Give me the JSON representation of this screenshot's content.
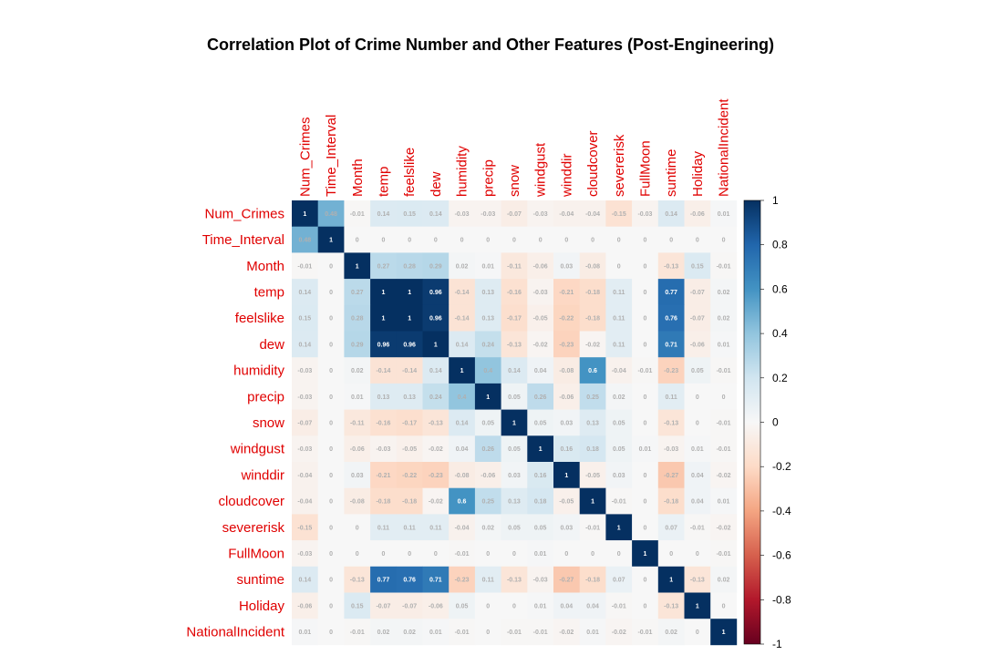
{
  "chart_data": {
    "type": "heatmap",
    "title": "Correlation Plot of Crime Number and Other Features (Post-Engineering)",
    "variables": [
      "Num_Crimes",
      "Time_Interval",
      "Month",
      "temp",
      "feelslike",
      "dew",
      "humidity",
      "precip",
      "snow",
      "windgust",
      "winddir",
      "cloudcover",
      "severerisk",
      "FullMoon",
      "suntime",
      "Holiday",
      "NationalIncident"
    ],
    "cell_labels": [
      [
        "1",
        "0.48",
        "-0.01",
        "0.14",
        "0.15",
        "0.14",
        "-0.03",
        "-0.03",
        "-0.07",
        "-0.03",
        "-0.04",
        "-0.04",
        "-0.15",
        "-0.03",
        "0.14",
        "-0.06",
        "0.01"
      ],
      [
        "0.48",
        "1",
        "0",
        "0",
        "0",
        "0",
        "0",
        "0",
        "0",
        "0",
        "0",
        "0",
        "0",
        "0",
        "0",
        "0",
        "0"
      ],
      [
        "-0.01",
        "0",
        "1",
        "0.27",
        "0.28",
        "0.29",
        "0.02",
        "0.01",
        "-0.11",
        "-0.06",
        "0.03",
        "-0.08",
        "0",
        "0",
        "-0.13",
        "0.15",
        "-0.01"
      ],
      [
        "0.14",
        "0",
        "0.27",
        "1",
        "1",
        "0.96",
        "-0.14",
        "0.13",
        "-0.16",
        "-0.03",
        "-0.21",
        "-0.18",
        "0.11",
        "0",
        "0.77",
        "-0.07",
        "0.02"
      ],
      [
        "0.15",
        "0",
        "0.28",
        "1",
        "1",
        "0.96",
        "-0.14",
        "0.13",
        "-0.17",
        "-0.05",
        "-0.22",
        "-0.18",
        "0.11",
        "0",
        "0.76",
        "-0.07",
        "0.02"
      ],
      [
        "0.14",
        "0",
        "0.29",
        "0.96",
        "0.96",
        "1",
        "0.14",
        "0.24",
        "-0.13",
        "-0.02",
        "-0.23",
        "-0.02",
        "0.11",
        "0",
        "0.71",
        "-0.06",
        "0.01"
      ],
      [
        "-0.03",
        "0",
        "0.02",
        "-0.14",
        "-0.14",
        "0.14",
        "1",
        "0.4",
        "0.14",
        "0.04",
        "-0.08",
        "0.6",
        "-0.04",
        "-0.01",
        "-0.23",
        "0.05",
        "-0.01"
      ],
      [
        "-0.03",
        "0",
        "0.01",
        "0.13",
        "0.13",
        "0.24",
        "0.4",
        "1",
        "0.05",
        "0.26",
        "-0.06",
        "0.25",
        "0.02",
        "0",
        "0.11",
        "0",
        "0"
      ],
      [
        "-0.07",
        "0",
        "-0.11",
        "-0.16",
        "-0.17",
        "-0.13",
        "0.14",
        "0.05",
        "1",
        "0.05",
        "0.03",
        "0.13",
        "0.05",
        "0",
        "-0.13",
        "0",
        "-0.01"
      ],
      [
        "-0.03",
        "0",
        "-0.06",
        "-0.03",
        "-0.05",
        "-0.02",
        "0.04",
        "0.26",
        "0.05",
        "1",
        "0.16",
        "0.18",
        "0.05",
        "0.01",
        "-0.03",
        "0.01",
        "-0.01"
      ],
      [
        "-0.04",
        "0",
        "0.03",
        "-0.21",
        "-0.22",
        "-0.23",
        "-0.08",
        "-0.06",
        "0.03",
        "0.16",
        "1",
        "-0.05",
        "0.03",
        "0",
        "-0.27",
        "0.04",
        "-0.02"
      ],
      [
        "-0.04",
        "0",
        "-0.08",
        "-0.18",
        "-0.18",
        "-0.02",
        "0.6",
        "0.25",
        "0.13",
        "0.18",
        "-0.05",
        "1",
        "-0.01",
        "0",
        "-0.18",
        "0.04",
        "0.01"
      ],
      [
        "-0.15",
        "0",
        "0",
        "0.11",
        "0.11",
        "0.11",
        "-0.04",
        "0.02",
        "0.05",
        "0.05",
        "0.03",
        "-0.01",
        "1",
        "0",
        "0.07",
        "-0.01",
        "-0.02"
      ],
      [
        "-0.03",
        "0",
        "0",
        "0",
        "0",
        "0",
        "-0.01",
        "0",
        "0",
        "0.01",
        "0",
        "0",
        "0",
        "1",
        "0",
        "0",
        "-0.01"
      ],
      [
        "0.14",
        "0",
        "-0.13",
        "0.77",
        "0.76",
        "0.71",
        "-0.23",
        "0.11",
        "-0.13",
        "-0.03",
        "-0.27",
        "-0.18",
        "0.07",
        "0",
        "1",
        "-0.13",
        "0.02"
      ],
      [
        "-0.06",
        "0",
        "0.15",
        "-0.07",
        "-0.07",
        "-0.06",
        "0.05",
        "0",
        "0",
        "0.01",
        "0.04",
        "0.04",
        "-0.01",
        "0",
        "-0.13",
        "1",
        "0"
      ],
      [
        "0.01",
        "0",
        "-0.01",
        "0.02",
        "0.02",
        "0.01",
        "-0.01",
        "0",
        "-0.01",
        "-0.01",
        "-0.02",
        "0.01",
        "-0.02",
        "-0.01",
        "0.02",
        "0",
        "1"
      ]
    ],
    "colorbar_ticks": [
      "1",
      "0.8",
      "0.6",
      "0.4",
      "0.2",
      "0",
      "-0.2",
      "-0.4",
      "-0.6",
      "-0.8",
      "-1"
    ],
    "color_range": [
      -1,
      1
    ],
    "colors": {
      "negative": "#67001f",
      "neutral": "#f7f7f7",
      "positive": "#053061",
      "label": "#e00000"
    }
  }
}
